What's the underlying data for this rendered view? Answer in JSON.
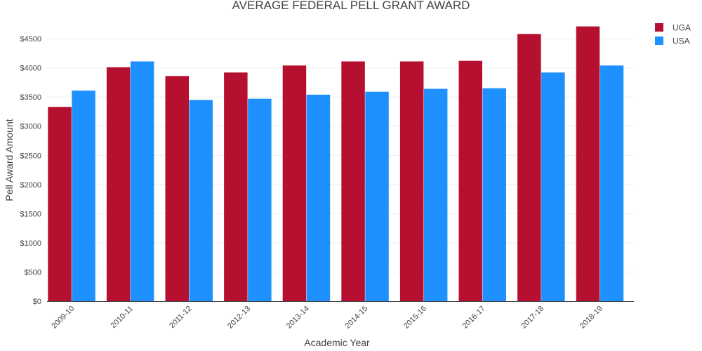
{
  "chart_data": {
    "type": "bar",
    "title": "AVERAGE FEDERAL PELL GRANT AWARD",
    "xlabel": "Academic Year",
    "ylabel": "Pell Award Amount",
    "ylim": [
      0,
      4850
    ],
    "yticks": [
      0,
      500,
      1000,
      1500,
      2000,
      2500,
      3000,
      3500,
      4000,
      4500
    ],
    "ytick_labels": [
      "$0",
      "$500",
      "$1000",
      "$1500",
      "$2000",
      "$2500",
      "$3000",
      "$3500",
      "$4000",
      "$4500"
    ],
    "grid": true,
    "legend_position": "top-right",
    "categories": [
      "2009-10",
      "2010-11",
      "2011-12",
      "2012-13",
      "2013-14",
      "2014-15",
      "2015-16",
      "2016-17",
      "2017-18",
      "2018-19"
    ],
    "series": [
      {
        "name": "UGA",
        "color": "#b5102f",
        "values": [
          3330,
          4010,
          3860,
          3920,
          4040,
          4110,
          4110,
          4120,
          4580,
          4710
        ]
      },
      {
        "name": "USA",
        "color": "#1f90ff",
        "values": [
          3610,
          4110,
          3450,
          3470,
          3540,
          3590,
          3640,
          3650,
          3920,
          4040
        ]
      }
    ]
  }
}
